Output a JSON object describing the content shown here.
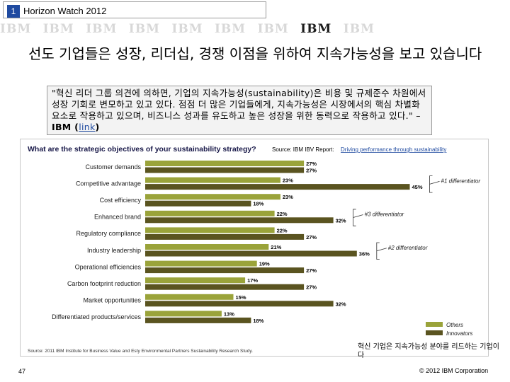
{
  "header": {
    "slide_number": "1",
    "title": "Horizon Watch 2012",
    "logos": [
      "IBM",
      "IBM",
      "IBM",
      "IBM",
      "IBM",
      "IBM",
      "IBM",
      "IBM",
      "IBM"
    ]
  },
  "headline": "선도 기업들은 성장, 리더십, 경쟁 이점을 위하여 지속가능성을 보고 있습니다",
  "quote": {
    "text": "\"혁신 리더 그룹 의견에 의하면, 기업의 지속가능성(sustainability)은 비용 및 규제준수 차원에서 성장 기회로 변모하고 있고 있다. 점점 더 많은 기업들에게, 지속가능성은 시장에서의 핵심 차별화 요소로 작용하고 있으며, 비즈니스 성과를 유도하고 높은 성장을 위한 동력으로 작용하고 있다.\" – ",
    "source": "IBM",
    "link_open": " (",
    "link_text": "link",
    "link_close": ")"
  },
  "chart_data": {
    "type": "bar",
    "orientation": "horizontal",
    "title": "What are the strategic objectives of your sustainability strategy?",
    "source_note_label": "Source:",
    "source_note": "IBM IBV Report: ",
    "source_link": "Driving performance through sustainability",
    "categories": [
      "Customer demands",
      "Competitive advantage",
      "Cost efficiency",
      "Enhanced brand",
      "Regulatory compliance",
      "Industry leadership",
      "Operational efficiencies",
      "Carbon footprint reduction",
      "Market opportunities",
      "Differentiated products/services"
    ],
    "series": [
      {
        "name": "Others",
        "color": "#9aa33a",
        "values": [
          27,
          23,
          23,
          22,
          22,
          21,
          19,
          17,
          15,
          13
        ]
      },
      {
        "name": "Innovators",
        "color": "#5a5420",
        "values": [
          27,
          45,
          18,
          32,
          27,
          36,
          27,
          27,
          32,
          18
        ]
      }
    ],
    "value_suffix": "%",
    "annotations": [
      {
        "category": "Competitive advantage",
        "text": "#1 differentiator"
      },
      {
        "category": "Enhanced brand",
        "text": "#3 differentiator"
      },
      {
        "category": "Industry leadership",
        "text": "#2 differentiator"
      }
    ],
    "legend_position": "bottom-right",
    "footnote": "Source: 2011 IBM Institute for Business Value and Esty Environmental Partners Sustainability Research Study."
  },
  "chart_note": "혁신 기업은 지속가능성 분야를 리드하는 기업이다",
  "footer": {
    "page_number": "47",
    "copyright": "© 2012 IBM Corporation"
  }
}
